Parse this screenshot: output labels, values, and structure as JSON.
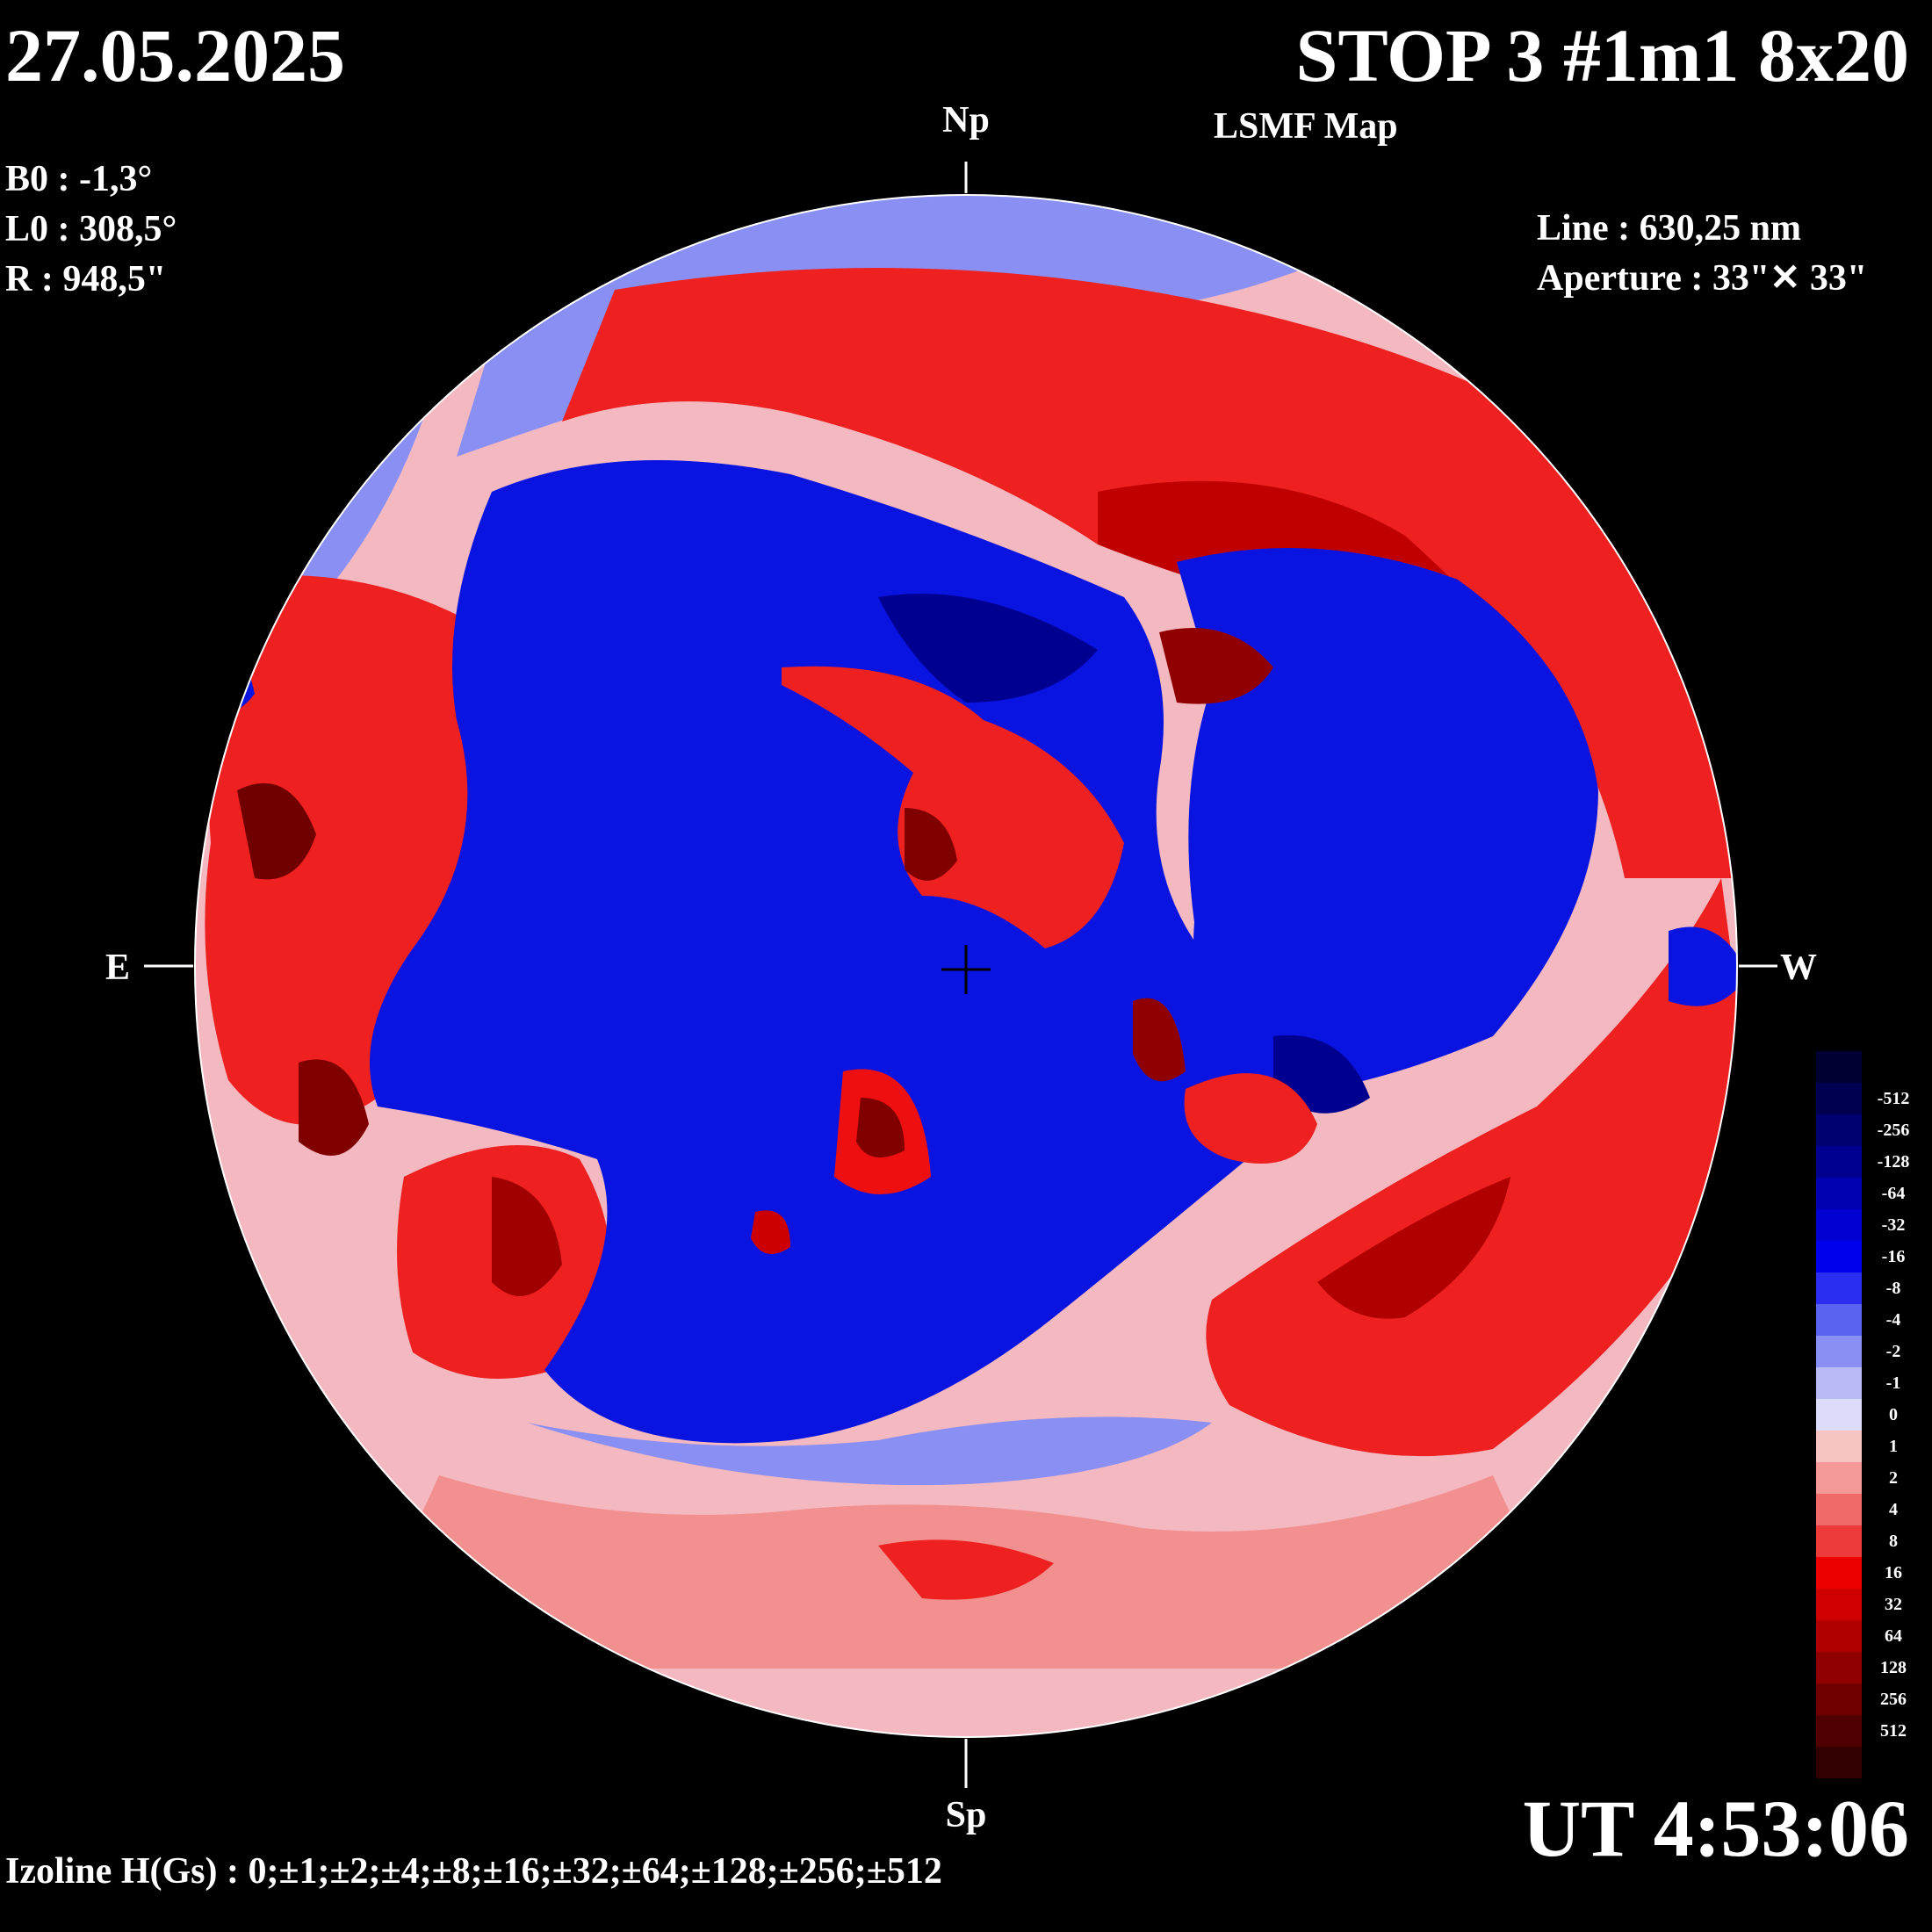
{
  "header": {
    "date": "27.05.2025",
    "title": "STOP 3 #1m1 8x20",
    "subtitle": "LSMF  Map"
  },
  "params": {
    "b0": "B0 : -1,3°",
    "l0": "L0 : 308,5°",
    "r": "R  : 948,5\""
  },
  "observation": {
    "line": "Line :  630,25 nm",
    "aperture": "Aperture : 33\"✕ 33\""
  },
  "compass": {
    "north": "Np",
    "south": "Sp",
    "east": "E",
    "west": "W"
  },
  "time": "UT 4:53:06",
  "izoline": "Izoline H(Gs) : 0;±1;±2;±4;±8;±16;±32;±64;±128;±256;±512",
  "legend": [
    {
      "label": "",
      "color": "#000033"
    },
    {
      "label": "-512",
      "color": "#000050"
    },
    {
      "label": "-256",
      "color": "#000070"
    },
    {
      "label": "-128",
      "color": "#000090"
    },
    {
      "label": "-64",
      "color": "#0000b0"
    },
    {
      "label": "-32",
      "color": "#0000d0"
    },
    {
      "label": "-16",
      "color": "#0000ee"
    },
    {
      "label": "-8",
      "color": "#2a2ef0"
    },
    {
      "label": "-4",
      "color": "#5a62f0"
    },
    {
      "label": "-2",
      "color": "#8a8ff4"
    },
    {
      "label": "-1",
      "color": "#b8bbf6"
    },
    {
      "label": "0",
      "color": "#dcdcfa"
    },
    {
      "label": "1",
      "color": "#f7c4c4"
    },
    {
      "label": "2",
      "color": "#f49898"
    },
    {
      "label": "4",
      "color": "#f06a6a"
    },
    {
      "label": "8",
      "color": "#ee3a3a"
    },
    {
      "label": "16",
      "color": "#ee0000"
    },
    {
      "label": "32",
      "color": "#d00000"
    },
    {
      "label": "64",
      "color": "#b00000"
    },
    {
      "label": "128",
      "color": "#900000"
    },
    {
      "label": "256",
      "color": "#700000"
    },
    {
      "label": "512",
      "color": "#500000"
    },
    {
      "label": "",
      "color": "#330000"
    }
  ],
  "regions": {
    "positive_color": "#ee2020",
    "strong_positive_color": "#a00000",
    "negative_color": "#0a14e0",
    "strong_negative_color": "#000090",
    "neutral_color": "#f4c8d0"
  }
}
